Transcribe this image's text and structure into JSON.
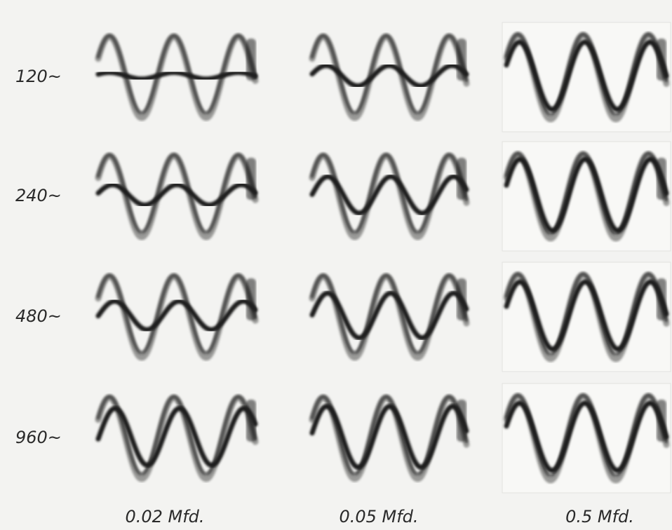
{
  "row_labels": [
    "120~",
    "240~",
    "480~",
    "960~"
  ],
  "column_labels": [
    "0.02 Mfd.",
    "0.05 Mfd.",
    "0.5 Mfd."
  ]
}
